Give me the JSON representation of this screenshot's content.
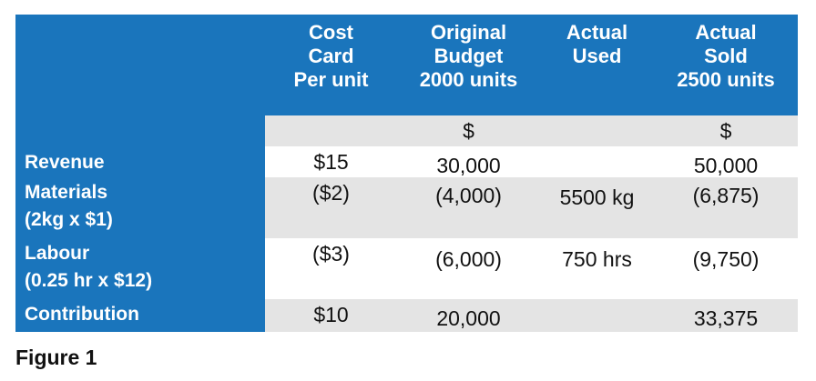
{
  "table": {
    "headers": [
      "",
      "Cost\nCard\nPer unit",
      "Original\nBudget\n2000 units",
      "Actual\nUsed",
      "Actual\nSold\n2500 units"
    ],
    "unit_row": [
      "",
      "",
      "$",
      "",
      "$"
    ],
    "rows": [
      {
        "label": "Revenue",
        "cells": [
          "$15",
          "30,000",
          "",
          "50,000"
        ]
      },
      {
        "label": "Materials\n(2kg x $1)",
        "cells": [
          "($2)",
          "(4,000)",
          "5500 kg",
          "(6,875)"
        ]
      },
      {
        "label": "Labour\n(0.25 hr x $12)",
        "cells": [
          "($3)",
          "(6,000)",
          "750 hrs",
          "(9,750)"
        ]
      },
      {
        "label": "Contribution",
        "cells": [
          "$10",
          "20,000",
          "",
          "33,375"
        ]
      }
    ]
  },
  "caption": "Figure 1",
  "colors": {
    "header_blue": "#1a75bc",
    "row_grey": "#e4e4e4",
    "row_white": "#ffffff",
    "text_white": "#ffffff",
    "text_dark": "#111111"
  }
}
